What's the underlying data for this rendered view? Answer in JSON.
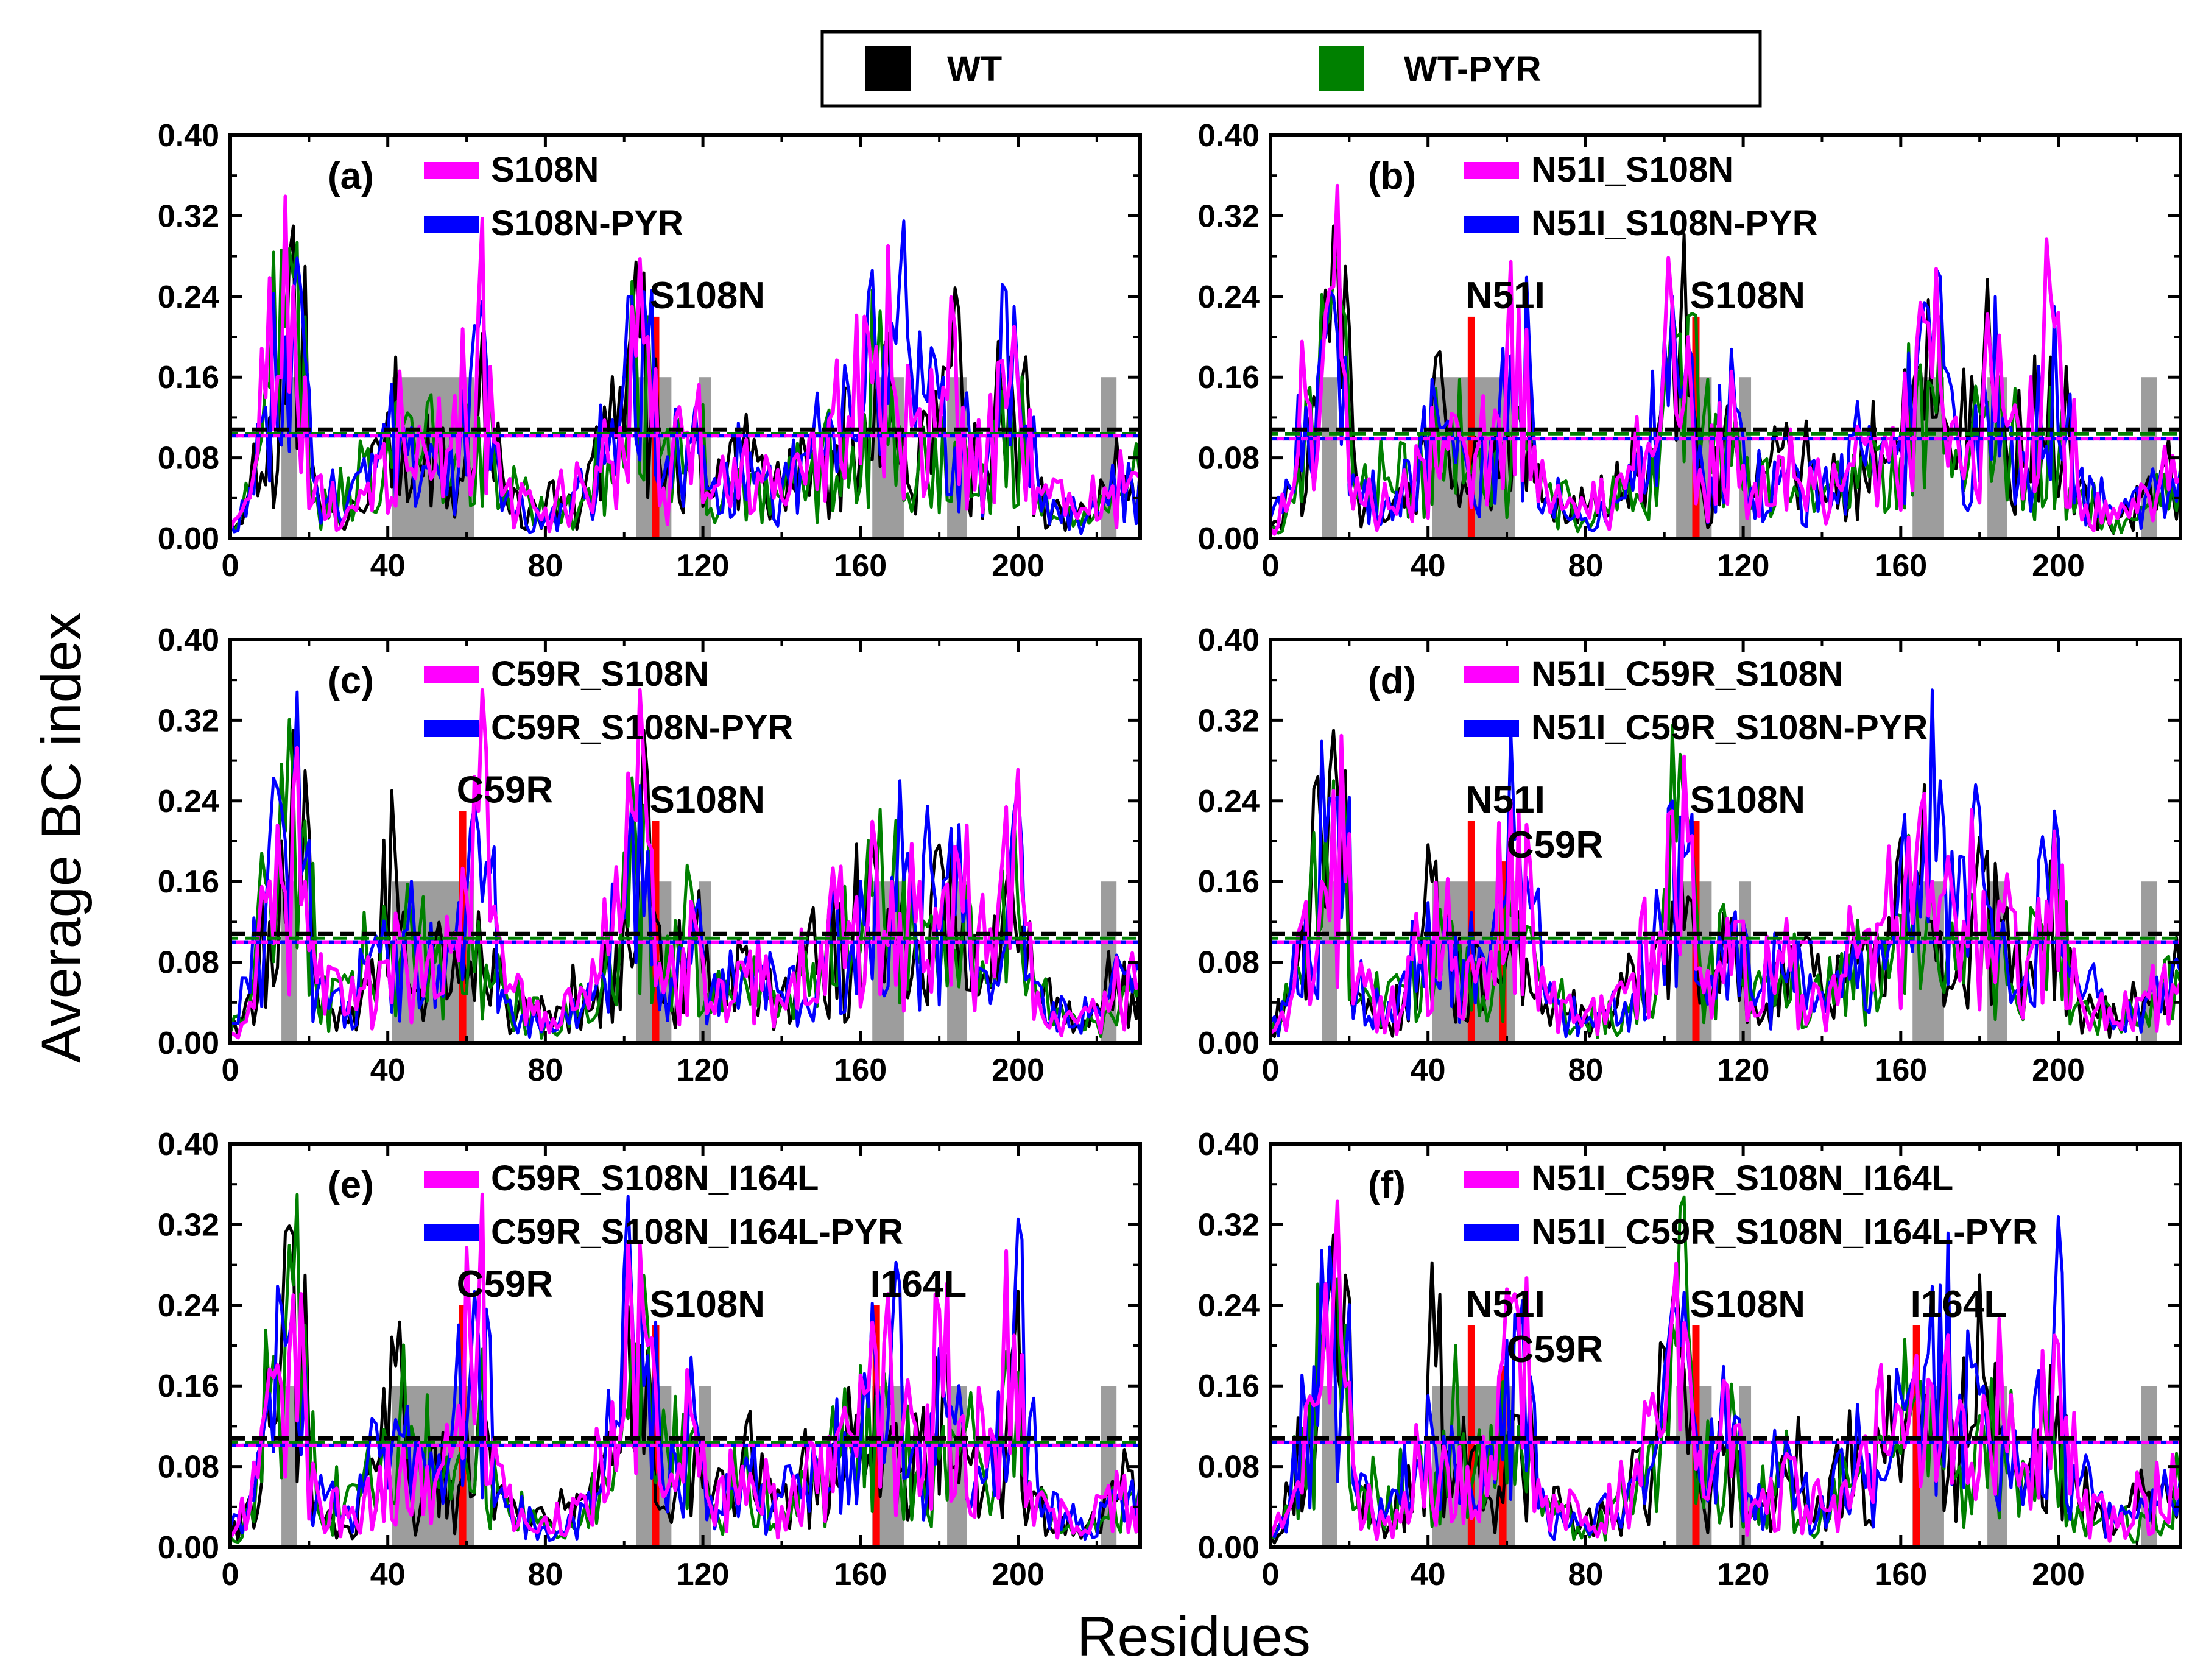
{
  "chart_data": {
    "type": "line",
    "ylabel": "Average BC index",
    "xlabel": "Residues",
    "xlim": [
      0,
      231
    ],
    "ylim": [
      0,
      0.4
    ],
    "xticks": [
      "0",
      "40",
      "80",
      "120",
      "160",
      "200"
    ],
    "yticks": [
      "0.00",
      "0.08",
      "0.16",
      "0.24",
      "0.32",
      "0.40"
    ],
    "top_legend": [
      {
        "name": "WT",
        "color": "#000000"
      },
      {
        "name": "WT-PYR",
        "color": "#008000"
      }
    ],
    "colors": {
      "wt": "#000000",
      "wt_pyr": "#008000",
      "mutant": "#ff00ff",
      "mutant_pyr": "#0000ff",
      "mutation_marker": "#ff0000",
      "region": "#8c8c8c"
    },
    "highlight_regions": [
      {
        "from": 13,
        "to": 17,
        "height": 0.16
      },
      {
        "from": 41,
        "to": 62,
        "height": 0.16
      },
      {
        "from": 103,
        "to": 112,
        "height": 0.16
      },
      {
        "from": 119,
        "to": 122,
        "height": 0.16
      },
      {
        "from": 163,
        "to": 171,
        "height": 0.16
      },
      {
        "from": 182,
        "to": 187,
        "height": 0.16
      },
      {
        "from": 221,
        "to": 225,
        "height": 0.16
      }
    ],
    "panels": [
      {
        "id": "(a)",
        "series": [
          {
            "name": "S108N",
            "color": "#ff00ff"
          },
          {
            "name": "S108N-PYR",
            "color": "#0000ff"
          }
        ],
        "mean_lines": {
          "wt": 0.108,
          "mutant": 0.102
        },
        "mutations": [
          {
            "label": "S108N",
            "residue": 108,
            "value": 0.22
          }
        ]
      },
      {
        "id": "(b)",
        "series": [
          {
            "name": "N51I_S108N",
            "color": "#ff00ff"
          },
          {
            "name": "N51I_S108N-PYR",
            "color": "#0000ff"
          }
        ],
        "mean_lines": {
          "wt": 0.108,
          "mutant": 0.099
        },
        "mutations": [
          {
            "label": "N51I",
            "residue": 51,
            "value": 0.22
          },
          {
            "label": "S108N",
            "residue": 108,
            "value": 0.22
          }
        ]
      },
      {
        "id": "(c)",
        "series": [
          {
            "name": "C59R_S108N",
            "color": "#ff00ff"
          },
          {
            "name": "C59R_S108N-PYR",
            "color": "#0000ff"
          }
        ],
        "mean_lines": {
          "wt": 0.108,
          "mutant": 0.1
        },
        "mutations": [
          {
            "label": "C59R",
            "residue": 59,
            "value": 0.23
          },
          {
            "label": "S108N",
            "residue": 108,
            "value": 0.22
          }
        ]
      },
      {
        "id": "(d)",
        "series": [
          {
            "name": "N51I_C59R_S108N",
            "color": "#ff00ff"
          },
          {
            "name": "N51I_C59R_S108N-PYR",
            "color": "#0000ff"
          }
        ],
        "mean_lines": {
          "wt": 0.108,
          "mutant": 0.1
        },
        "mutations": [
          {
            "label": "N51I",
            "residue": 51,
            "value": 0.22
          },
          {
            "label": "C59R",
            "residue": 59,
            "value": 0.18
          },
          {
            "label": "S108N",
            "residue": 108,
            "value": 0.22
          }
        ]
      },
      {
        "id": "(e)",
        "series": [
          {
            "name": "C59R_S108N_I164L",
            "color": "#ff00ff"
          },
          {
            "name": "C59R_S108N_I164L-PYR",
            "color": "#0000ff"
          }
        ],
        "mean_lines": {
          "wt": 0.108,
          "mutant": 0.101
        },
        "mutations": [
          {
            "label": "C59R",
            "residue": 59,
            "value": 0.24
          },
          {
            "label": "S108N",
            "residue": 108,
            "value": 0.22
          },
          {
            "label": "I164L",
            "residue": 164,
            "value": 0.24
          }
        ]
      },
      {
        "id": "(f)",
        "series": [
          {
            "name": "N51I_C59R_S108N_I164L",
            "color": "#ff00ff"
          },
          {
            "name": "N51I_C59R_S108N_I164L-PYR",
            "color": "#0000ff"
          }
        ],
        "mean_lines": {
          "wt": 0.108,
          "mutant": 0.104
        },
        "mutations": [
          {
            "label": "N51I",
            "residue": 51,
            "value": 0.22
          },
          {
            "label": "C59R",
            "residue": 59,
            "value": 0.18
          },
          {
            "label": "S108N",
            "residue": 108,
            "value": 0.22
          },
          {
            "label": "I164L",
            "residue": 164,
            "value": 0.22
          }
        ]
      }
    ],
    "profile_peaks": {
      "wt": [
        [
          0,
          0.01
        ],
        [
          5,
          0.05
        ],
        [
          10,
          0.12
        ],
        [
          13,
          0.2
        ],
        [
          16,
          0.31
        ],
        [
          18,
          0.15
        ],
        [
          19,
          0.27
        ],
        [
          22,
          0.05
        ],
        [
          30,
          0.02
        ],
        [
          38,
          0.09
        ],
        [
          42,
          0.18
        ],
        [
          46,
          0.05
        ],
        [
          52,
          0.1
        ],
        [
          58,
          0.06
        ],
        [
          63,
          0.13
        ],
        [
          70,
          0.04
        ],
        [
          80,
          0.03
        ],
        [
          90,
          0.05
        ],
        [
          98,
          0.1
        ],
        [
          104,
          0.2
        ],
        [
          107,
          0.14
        ],
        [
          110,
          0.04
        ],
        [
          118,
          0.1
        ],
        [
          122,
          0.04
        ],
        [
          130,
          0.09
        ],
        [
          140,
          0.05
        ],
        [
          150,
          0.09
        ],
        [
          158,
          0.1
        ],
        [
          164,
          0.17
        ],
        [
          168,
          0.12
        ],
        [
          175,
          0.1
        ],
        [
          181,
          0.17
        ],
        [
          186,
          0.12
        ],
        [
          192,
          0.07
        ],
        [
          198,
          0.18
        ],
        [
          205,
          0.05
        ],
        [
          215,
          0.02
        ],
        [
          222,
          0.05
        ],
        [
          231,
          0.07
        ]
      ],
      "wt_pyr": [
        [
          0,
          0.01
        ],
        [
          5,
          0.04
        ],
        [
          10,
          0.15
        ],
        [
          14,
          0.21
        ],
        [
          16,
          0.26
        ],
        [
          19,
          0.22
        ],
        [
          22,
          0.04
        ],
        [
          30,
          0.06
        ],
        [
          40,
          0.1
        ],
        [
          46,
          0.12
        ],
        [
          52,
          0.08
        ],
        [
          58,
          0.09
        ],
        [
          63,
          0.12
        ],
        [
          70,
          0.05
        ],
        [
          80,
          0.02
        ],
        [
          90,
          0.04
        ],
        [
          99,
          0.1
        ],
        [
          103,
          0.2
        ],
        [
          106,
          0.22
        ],
        [
          109,
          0.08
        ],
        [
          118,
          0.12
        ],
        [
          122,
          0.03
        ],
        [
          130,
          0.07
        ],
        [
          140,
          0.04
        ],
        [
          150,
          0.08
        ],
        [
          158,
          0.09
        ],
        [
          164,
          0.15
        ],
        [
          168,
          0.15
        ],
        [
          175,
          0.08
        ],
        [
          181,
          0.12
        ],
        [
          186,
          0.11
        ],
        [
          192,
          0.06
        ],
        [
          198,
          0.15
        ],
        [
          205,
          0.04
        ],
        [
          215,
          0.02
        ],
        [
          222,
          0.03
        ],
        [
          231,
          0.06
        ]
      ],
      "mutant": [
        [
          0,
          0.01
        ],
        [
          5,
          0.04
        ],
        [
          9,
          0.14
        ],
        [
          13,
          0.16
        ],
        [
          16,
          0.25
        ],
        [
          19,
          0.16
        ],
        [
          22,
          0.06
        ],
        [
          30,
          0.03
        ],
        [
          38,
          0.08
        ],
        [
          44,
          0.1
        ],
        [
          50,
          0.08
        ],
        [
          56,
          0.09
        ],
        [
          63,
          0.23
        ],
        [
          70,
          0.05
        ],
        [
          80,
          0.03
        ],
        [
          90,
          0.05
        ],
        [
          99,
          0.11
        ],
        [
          102,
          0.23
        ],
        [
          106,
          0.2
        ],
        [
          110,
          0.05
        ],
        [
          118,
          0.12
        ],
        [
          122,
          0.04
        ],
        [
          130,
          0.08
        ],
        [
          140,
          0.04
        ],
        [
          150,
          0.1
        ],
        [
          158,
          0.11
        ],
        [
          164,
          0.19
        ],
        [
          168,
          0.16
        ],
        [
          174,
          0.12
        ],
        [
          181,
          0.15
        ],
        [
          186,
          0.13
        ],
        [
          192,
          0.08
        ],
        [
          199,
          0.21
        ],
        [
          205,
          0.05
        ],
        [
          215,
          0.02
        ],
        [
          222,
          0.05
        ],
        [
          231,
          0.06
        ]
      ],
      "mutant_pyr": [
        [
          0,
          0.02
        ],
        [
          5,
          0.05
        ],
        [
          9,
          0.13
        ],
        [
          14,
          0.2
        ],
        [
          16,
          0.24
        ],
        [
          19,
          0.18
        ],
        [
          22,
          0.05
        ],
        [
          30,
          0.04
        ],
        [
          38,
          0.09
        ],
        [
          44,
          0.11
        ],
        [
          50,
          0.07
        ],
        [
          56,
          0.1
        ],
        [
          63,
          0.21
        ],
        [
          70,
          0.04
        ],
        [
          80,
          0.02
        ],
        [
          90,
          0.04
        ],
        [
          99,
          0.12
        ],
        [
          102,
          0.24
        ],
        [
          106,
          0.19
        ],
        [
          110,
          0.06
        ],
        [
          118,
          0.13
        ],
        [
          122,
          0.05
        ],
        [
          130,
          0.07
        ],
        [
          140,
          0.05
        ],
        [
          150,
          0.09
        ],
        [
          158,
          0.1
        ],
        [
          164,
          0.17
        ],
        [
          170,
          0.26
        ],
        [
          174,
          0.11
        ],
        [
          181,
          0.16
        ],
        [
          186,
          0.12
        ],
        [
          192,
          0.07
        ],
        [
          199,
          0.23
        ],
        [
          205,
          0.06
        ],
        [
          215,
          0.02
        ],
        [
          222,
          0.04
        ],
        [
          231,
          0.07
        ]
      ]
    }
  }
}
